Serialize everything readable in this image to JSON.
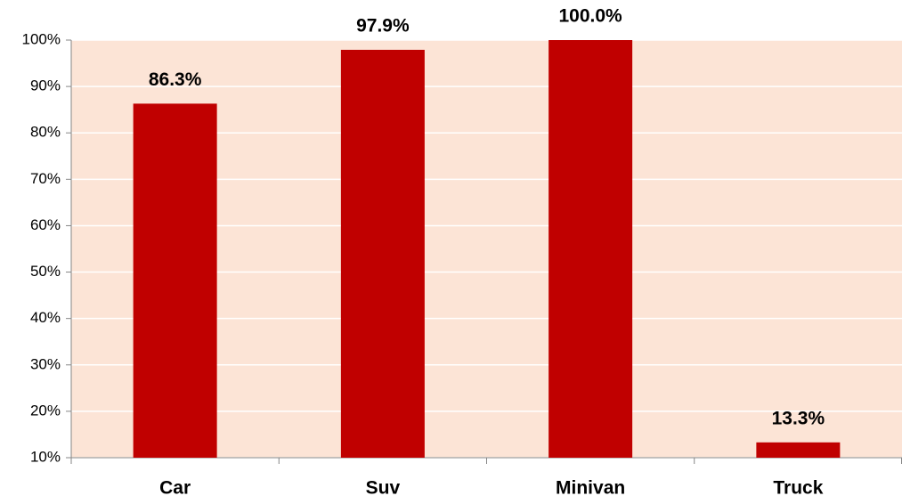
{
  "chart_data": {
    "type": "bar",
    "categories": [
      "Car",
      "Suv",
      "Minivan",
      "Truck"
    ],
    "values": [
      86.3,
      97.9,
      100.0,
      13.3
    ],
    "value_labels": [
      "86.3%",
      "97.9%",
      "100.0%",
      "13.3%"
    ],
    "color": "#c00000",
    "ylim": [
      10,
      100
    ],
    "yticks": [
      {
        "value": 10,
        "label": "10%"
      },
      {
        "value": 20,
        "label": "20%"
      },
      {
        "value": 30,
        "label": "30%"
      },
      {
        "value": 40,
        "label": "40%"
      },
      {
        "value": 50,
        "label": "50%"
      },
      {
        "value": 60,
        "label": "60%"
      },
      {
        "value": 70,
        "label": "70%"
      },
      {
        "value": 80,
        "label": "80%"
      },
      {
        "value": 90,
        "label": "90%"
      },
      {
        "value": 100,
        "label": "100%"
      }
    ],
    "grid": true
  }
}
